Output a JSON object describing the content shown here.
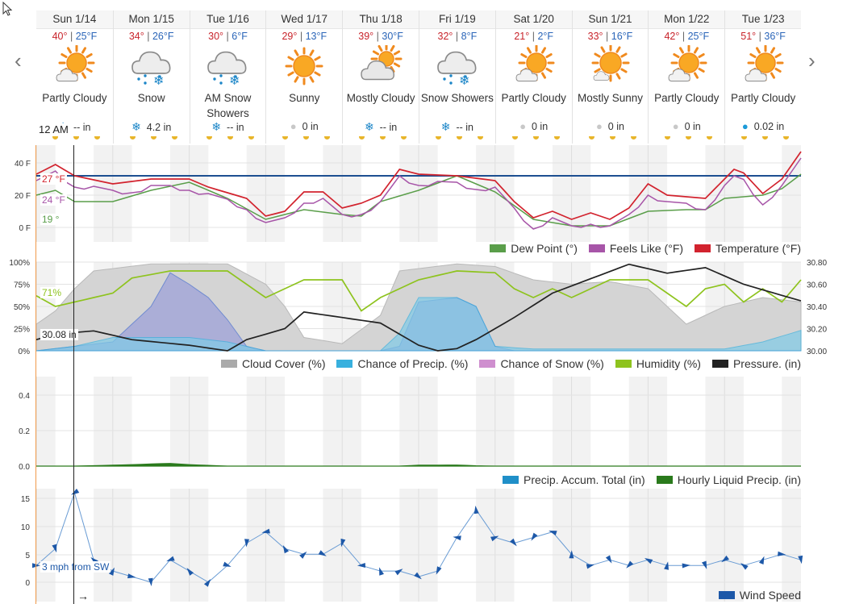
{
  "days": [
    {
      "date": "Sun 1/14",
      "hi": "40°",
      "lo": "25°F",
      "cond": "Partly Cloudy",
      "icon": "partly-cloudy-icon",
      "precip": "-- in",
      "precip_icon": "snowflake-icon"
    },
    {
      "date": "Mon 1/15",
      "hi": "34°",
      "lo": "26°F",
      "cond": "Snow",
      "icon": "snow-icon",
      "precip": "4.2 in",
      "precip_icon": "snowflake-icon"
    },
    {
      "date": "Tue 1/16",
      "hi": "30°",
      "lo": "6°F",
      "cond": "AM Snow Showers",
      "icon": "snow-showers-icon",
      "precip": "-- in",
      "precip_icon": "snowflake-icon"
    },
    {
      "date": "Wed 1/17",
      "hi": "29°",
      "lo": "13°F",
      "cond": "Sunny",
      "icon": "sunny-icon",
      "precip": "0 in",
      "precip_icon": "raindrop-icon"
    },
    {
      "date": "Thu 1/18",
      "hi": "39°",
      "lo": "30°F",
      "cond": "Mostly Cloudy",
      "icon": "mostly-cloudy-icon",
      "precip": "-- in",
      "precip_icon": "snowflake-icon"
    },
    {
      "date": "Fri 1/19",
      "hi": "32°",
      "lo": "8°F",
      "cond": "Snow Showers",
      "icon": "snow-showers-icon",
      "precip": "-- in",
      "precip_icon": "snowflake-icon"
    },
    {
      "date": "Sat 1/20",
      "hi": "21°",
      "lo": "2°F",
      "cond": "Partly Cloudy",
      "icon": "partly-cloudy-icon",
      "precip": "0 in",
      "precip_icon": "raindrop-icon"
    },
    {
      "date": "Sun 1/21",
      "hi": "33°",
      "lo": "16°F",
      "cond": "Mostly Sunny",
      "icon": "mostly-sunny-icon",
      "precip": "0 in",
      "precip_icon": "raindrop-icon"
    },
    {
      "date": "Mon 1/22",
      "hi": "42°",
      "lo": "25°F",
      "cond": "Partly Cloudy",
      "icon": "partly-cloudy-icon",
      "precip": "0 in",
      "precip_icon": "raindrop-icon"
    },
    {
      "date": "Tue 1/23",
      "hi": "51°",
      "lo": "36°F",
      "cond": "Partly Cloudy",
      "icon": "partly-cloudy-icon",
      "precip": "0.02 in",
      "precip_icon": "raindrop-icon"
    }
  ],
  "nav": {
    "prev": "‹",
    "next": "›"
  },
  "time_label": "12 AM",
  "temp_panel": {
    "yticks": [
      "40 F",
      "20 F",
      "0 F"
    ],
    "hover": {
      "temp": "27 °F",
      "feels": "24 °F",
      "dew": "19 °"
    },
    "legend": [
      {
        "label": "Dew Point (°)",
        "color": "#5a9e4a"
      },
      {
        "label": "Feels Like (°F)",
        "color": "#a755a8"
      },
      {
        "label": "Temperature (°F)",
        "color": "#d2232e"
      }
    ]
  },
  "sky_panel": {
    "yticks_left": [
      "100%",
      "75%",
      "50%",
      "25%",
      "0%"
    ],
    "yticks_right": [
      "30.80",
      "30.60",
      "30.40",
      "30.20",
      "30.00"
    ],
    "hover": {
      "humidity": "71%",
      "pressure": "30.08 in"
    },
    "legend": [
      {
        "label": "Cloud Cover (%)",
        "color": "#aaaaaa"
      },
      {
        "label": "Chance of Precip. (%)",
        "color": "#38b0de"
      },
      {
        "label": "Chance of Snow (%)",
        "color": "#cf8fcf"
      },
      {
        "label": "Humidity (%)",
        "color": "#8ec31e"
      },
      {
        "label": "Pressure. (in)",
        "color": "#222222"
      }
    ]
  },
  "precip_panel": {
    "yticks": [
      "0.4",
      "0.2",
      "0.0"
    ],
    "legend": [
      {
        "label": "Precip. Accum. Total (in)",
        "color": "#1f8fc8"
      },
      {
        "label": "Hourly Liquid Precip. (in)",
        "color": "#2a7a1c"
      }
    ]
  },
  "wind_panel": {
    "yticks": [
      "15",
      "10",
      "5",
      "0"
    ],
    "hover": "3 mph from SW",
    "arrow": "→",
    "legend": [
      {
        "label": "Wind Speed",
        "color": "#1d58a8"
      }
    ]
  }
}
